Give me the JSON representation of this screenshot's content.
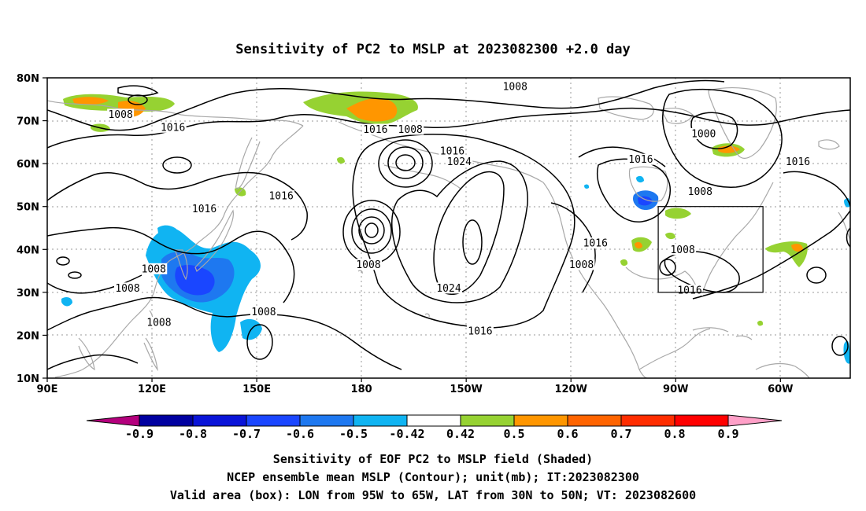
{
  "title": "Sensitivity of PC2 to MSLP at 2023082300 +2.0 day",
  "lat_labels": [
    "80N",
    "70N",
    "60N",
    "50N",
    "40N",
    "30N",
    "20N",
    "10N"
  ],
  "lon_labels": [
    "90E",
    "120E",
    "150E",
    "180",
    "150W",
    "120W",
    "90W",
    "60W"
  ],
  "map_extent": {
    "lon_min": 90,
    "lon_max": 320,
    "lat_min": 10,
    "lat_max": 80
  },
  "valid_box": {
    "lon_w": -95,
    "lon_e": -65,
    "lat_s": 30,
    "lat_n": 50
  },
  "isobar_labels": [
    {
      "text": "1008",
      "lon": 111,
      "lat": 71.5
    },
    {
      "text": "1016",
      "lon": 126,
      "lat": 68.5
    },
    {
      "text": "1016",
      "lon": 135,
      "lat": 49.5
    },
    {
      "text": "1016",
      "lon": 157,
      "lat": 52.5
    },
    {
      "text": "1008",
      "lon": 120.5,
      "lat": 35.5
    },
    {
      "text": "1008",
      "lon": 113,
      "lat": 31
    },
    {
      "text": "1008",
      "lon": 122,
      "lat": 23
    },
    {
      "text": "1008",
      "lon": 152,
      "lat": 25.5
    },
    {
      "text": "1016",
      "lon": 184,
      "lat": 68
    },
    {
      "text": "1008",
      "lon": 194,
      "lat": 68
    },
    {
      "text": "1016",
      "lon": 206,
      "lat": 63
    },
    {
      "text": "1024",
      "lon": 208,
      "lat": 60.5
    },
    {
      "text": "1008",
      "lon": 182,
      "lat": 36.5
    },
    {
      "text": "1024",
      "lon": 205,
      "lat": 31
    },
    {
      "text": "1016",
      "lon": 214,
      "lat": 21
    },
    {
      "text": "1008",
      "lon": 224,
      "lat": 78
    },
    {
      "text": "1000",
      "lon": 278,
      "lat": 67
    },
    {
      "text": "1016",
      "lon": 260,
      "lat": 61
    },
    {
      "text": "1008",
      "lon": 277,
      "lat": 53.5
    },
    {
      "text": "1016",
      "lon": 305,
      "lat": 60.5
    },
    {
      "text": "1016",
      "lon": 247,
      "lat": 41.5
    },
    {
      "text": "1008",
      "lon": 243,
      "lat": 36.5
    },
    {
      "text": "1008",
      "lon": 272,
      "lat": 40
    },
    {
      "text": "1016",
      "lon": 274,
      "lat": 30.5
    }
  ],
  "colorbar": {
    "labels": [
      "-0.9",
      "-0.8",
      "-0.7",
      "-0.6",
      "-0.5",
      "-0.42",
      "0.42",
      "0.5",
      "0.6",
      "0.7",
      "0.8",
      "0.9"
    ],
    "colors": [
      "#0000a0",
      "#0a14d8",
      "#1a46ff",
      "#1e78f0",
      "#10b4f2",
      "#ffffff",
      "#96d232",
      "#ff9600",
      "#ff6400",
      "#ff2d00",
      "#ff0000"
    ],
    "low_tri": "#b4007d",
    "high_tri": "#ffa0c8"
  },
  "caption": [
    "Sensitivity of EOF PC2 to MSLP field (Shaded)",
    "NCEP ensemble mean MSLP (Contour); unit(mb); IT:2023082300",
    "Valid area (box): LON from 95W to 65W, LAT from 30N to 50N; VT: 2023082600"
  ]
}
